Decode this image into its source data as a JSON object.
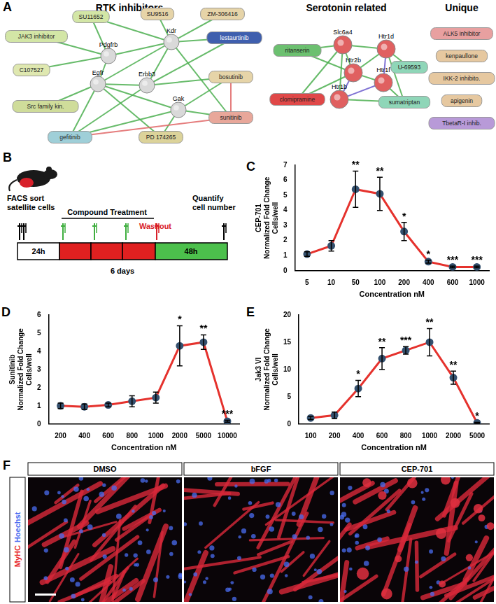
{
  "panel_labels": [
    "A",
    "B",
    "C",
    "D",
    "E",
    "F"
  ],
  "network": {
    "groups": [
      {
        "title": "RTK inhibitors",
        "nodes": [
          {
            "label": "SU11652",
            "kind": "drug",
            "color": "#d3e6a6"
          },
          {
            "label": "SU9516",
            "kind": "drug",
            "color": "#e6d4a8"
          },
          {
            "label": "ZM-306416",
            "kind": "drug",
            "color": "#e6d4a8"
          },
          {
            "label": "JAK3 inhibitor",
            "kind": "drug",
            "color": "#d3e6a6"
          },
          {
            "label": "lestaurtinib",
            "kind": "drug",
            "color": "#3f5fae"
          },
          {
            "label": "Pdgfrb",
            "kind": "protein",
            "color": "#d9d9d9"
          },
          {
            "label": "Kdr",
            "kind": "protein",
            "color": "#d9d9d9"
          },
          {
            "label": "C107527",
            "kind": "drug",
            "color": "#dfe8b0"
          },
          {
            "label": "Egfr",
            "kind": "protein",
            "color": "#d9d9d9"
          },
          {
            "label": "Erbb3",
            "kind": "protein",
            "color": "#d9d9d9"
          },
          {
            "label": "bosutinib",
            "kind": "drug",
            "color": "#e6d4a8"
          },
          {
            "label": "Gak",
            "kind": "protein",
            "color": "#d9d9d9"
          },
          {
            "label": "Src family kin.",
            "kind": "drug",
            "color": "#cfdc9a"
          },
          {
            "label": "sunitinib",
            "kind": "drug",
            "color": "#e8a79a"
          },
          {
            "label": "gefitinib",
            "kind": "drug",
            "color": "#9fcfd8"
          },
          {
            "label": "PD 174265",
            "kind": "drug",
            "color": "#dcd39a"
          }
        ],
        "edges": [
          {
            "from": "Pdgfrb",
            "to": "Kdr",
            "color": "#4caf50"
          },
          {
            "from": "Pdgfrb",
            "to": "Egfr",
            "color": "#4caf50"
          },
          {
            "from": "Pdgfrb",
            "to": "SU11652",
            "color": "#4caf50"
          },
          {
            "from": "Pdgfrb",
            "to": "JAK3 inhibitor",
            "color": "#4caf50"
          },
          {
            "from": "Pdgfrb",
            "to": "C107527",
            "color": "#4caf50"
          },
          {
            "from": "Kdr",
            "to": "SU11652",
            "color": "#4caf50"
          },
          {
            "from": "Kdr",
            "to": "SU9516",
            "color": "#4caf50"
          },
          {
            "from": "Kdr",
            "to": "ZM-306416",
            "color": "#4caf50"
          },
          {
            "from": "Kdr",
            "to": "lestaurtinib",
            "color": "#4caf50"
          },
          {
            "from": "Kdr",
            "to": "sunitinib",
            "color": "#4caf50"
          },
          {
            "from": "Kdr",
            "to": "Egfr",
            "color": "#4caf50"
          },
          {
            "from": "Kdr",
            "to": "Erbb3",
            "color": "#4caf50"
          },
          {
            "from": "Egfr",
            "to": "Erbb3",
            "color": "#4caf50"
          },
          {
            "from": "Egfr",
            "to": "Src family kin.",
            "color": "#4caf50"
          },
          {
            "from": "Egfr",
            "to": "gefitinib",
            "color": "#4caf50"
          },
          {
            "from": "Egfr",
            "to": "PD 174265",
            "color": "#4caf50"
          },
          {
            "from": "Egfr",
            "to": "Gak",
            "color": "#4caf50"
          },
          {
            "from": "Erbb3",
            "to": "gefitinib",
            "color": "#4caf50"
          },
          {
            "from": "Erbb3",
            "to": "bosutinib",
            "color": "#4caf50"
          },
          {
            "from": "Erbb3",
            "to": "lestaurtinib",
            "color": "#4caf50"
          },
          {
            "from": "Gak",
            "to": "bosutinib",
            "color": "#4caf50"
          },
          {
            "from": "Gak",
            "to": "sunitinib",
            "color": "#4caf50"
          },
          {
            "from": "Gak",
            "to": "gefitinib",
            "color": "#4caf50"
          },
          {
            "from": "Gak",
            "to": "PD 174265",
            "color": "#4caf50"
          },
          {
            "from": "bosutinib",
            "to": "sunitinib",
            "color": "#e06666"
          },
          {
            "from": "gefitinib",
            "to": "sunitinib",
            "color": "#e06666"
          }
        ]
      },
      {
        "title": "Serotonin related",
        "nodes": [
          {
            "label": "ritanserin",
            "kind": "drug",
            "color": "#6cc070"
          },
          {
            "label": "Slc6a4",
            "kind": "protein",
            "color": "#e06060"
          },
          {
            "label": "Htr1d",
            "kind": "protein",
            "color": "#e06060"
          },
          {
            "label": "U-69593",
            "kind": "drug",
            "color": "#8fd6b8"
          },
          {
            "label": "Htr2b",
            "kind": "protein",
            "color": "#e06060"
          },
          {
            "label": "Htr1f",
            "kind": "protein",
            "color": "#e06060"
          },
          {
            "label": "clomipramine",
            "kind": "drug",
            "color": "#e04848"
          },
          {
            "label": "Htr1b",
            "kind": "protein",
            "color": "#e06060"
          },
          {
            "label": "sumatriptan",
            "kind": "drug",
            "color": "#8fd6b8"
          }
        ],
        "edges": [
          {
            "from": "ritanserin",
            "to": "Slc6a4",
            "color": "#4caf50"
          },
          {
            "from": "ritanserin",
            "to": "Htr2b",
            "color": "#4caf50"
          },
          {
            "from": "clomipramine",
            "to": "Slc6a4",
            "color": "#4caf50"
          },
          {
            "from": "clomipramine",
            "to": "Htr2b",
            "color": "#4caf50"
          },
          {
            "from": "Slc6a4",
            "to": "Htr1d",
            "color": "#4caf50"
          },
          {
            "from": "Slc6a4",
            "to": "Htr2b",
            "color": "#4caf50"
          },
          {
            "from": "Slc6a4",
            "to": "Htr1b",
            "color": "#4caf50"
          },
          {
            "from": "Htr1d",
            "to": "Htr1f",
            "color": "#6a5acd"
          },
          {
            "from": "Htr1d",
            "to": "Htr2b",
            "color": "#4caf50"
          },
          {
            "from": "Htr1d",
            "to": "sumatriptan",
            "color": "#4caf50"
          },
          {
            "from": "Htr1d",
            "to": "U-69593",
            "color": "#4caf50"
          },
          {
            "from": "Htr1f",
            "to": "sumatriptan",
            "color": "#4caf50"
          },
          {
            "from": "Htr1b",
            "to": "sumatriptan",
            "color": "#4caf50"
          },
          {
            "from": "Htr1b",
            "to": "Htr2b",
            "color": "#6a5acd"
          },
          {
            "from": "Htr1b",
            "to": "Htr1f",
            "color": "#6a5acd"
          },
          {
            "from": "Htr2b",
            "to": "Htr1f",
            "color": "#4caf50"
          }
        ]
      },
      {
        "title": "Unique",
        "nodes": [
          {
            "label": "ALK5 inhibitor",
            "kind": "drug",
            "color": "#e8a0a0"
          },
          {
            "label": "kenpaullone",
            "kind": "drug",
            "color": "#e6c8a0"
          },
          {
            "label": "IKK-2 inhibito.",
            "kind": "drug",
            "color": "#e6c8a0"
          },
          {
            "label": "apigenin",
            "kind": "drug",
            "color": "#e6c8a0"
          },
          {
            "label": "TbetaR-I inhib.",
            "kind": "drug",
            "color": "#b89ad8"
          }
        ],
        "edges": []
      }
    ]
  },
  "schematic": {
    "start_text": [
      "FACS sort",
      "satellite cells"
    ],
    "treatment": "Compound Treatment",
    "washout": "Washout",
    "end_text": [
      "Quantify",
      "cell number"
    ],
    "first_period": "24h",
    "last_period": "48h",
    "total": "6 days"
  },
  "chart_data": [
    {
      "type": "line",
      "series": [
        {
          "name": "CEP-701",
          "color": "#e5322d",
          "marker": "circle",
          "values": [
            1.1,
            1.65,
            5.4,
            5.1,
            2.6,
            0.6,
            0.25,
            0.25
          ],
          "errors": [
            0.15,
            0.35,
            1.2,
            1.1,
            0.6,
            0.1,
            0.05,
            0.05
          ],
          "significance": [
            null,
            null,
            "**",
            "**",
            "*",
            "*",
            "***",
            "***"
          ]
        }
      ],
      "categories": [
        "5",
        "10",
        "50",
        "100",
        "200",
        "400",
        "600",
        "1000"
      ],
      "x_label": "Concentration nM",
      "y_label": [
        "Normalized Fold Change",
        "Cells/well"
      ],
      "ylim": [
        0,
        7
      ],
      "yticks": [
        0,
        1,
        2,
        3,
        4,
        5,
        6,
        7
      ],
      "grid": false
    },
    {
      "type": "line",
      "series": [
        {
          "name": "Sunitinib",
          "color": "#e5322d",
          "marker": "circle",
          "values": [
            1.0,
            0.95,
            1.05,
            1.25,
            1.45,
            4.3,
            4.5,
            0.15
          ],
          "errors": [
            0.15,
            0.15,
            0.1,
            0.3,
            0.3,
            1.1,
            0.4,
            0.05
          ],
          "significance": [
            null,
            null,
            null,
            null,
            null,
            "*",
            "**",
            "***"
          ]
        }
      ],
      "categories": [
        "200",
        "400",
        "600",
        "800",
        "1000",
        "2000",
        "5000",
        "10000"
      ],
      "x_label": "Concentration nM",
      "y_label": [
        "Normalized Fold Change",
        "Cells/well"
      ],
      "ylim": [
        0,
        6
      ],
      "yticks": [
        0,
        1,
        2,
        3,
        4,
        5,
        6
      ],
      "grid": false
    },
    {
      "type": "line",
      "series": [
        {
          "name": "Jak3 VI",
          "color": "#e5322d",
          "marker": "circle",
          "values": [
            1.1,
            1.6,
            6.5,
            12,
            13.5,
            15,
            8.5,
            0.2
          ],
          "errors": [
            0.3,
            0.6,
            1.5,
            2,
            0.7,
            2.5,
            1.2,
            0.1
          ],
          "significance": [
            null,
            null,
            "*",
            "**",
            "***",
            "**",
            "**",
            "*"
          ]
        }
      ],
      "categories": [
        "100",
        "200",
        "400",
        "600",
        "800",
        "1000",
        "2000",
        "5000"
      ],
      "x_label": "Concentration nM",
      "y_label": [
        "Normalized Fold Change",
        "Cells/well"
      ],
      "ylim": [
        0,
        20
      ],
      "yticks": [
        0,
        5,
        10,
        15,
        20
      ],
      "grid": false
    }
  ],
  "images": {
    "stain": [
      "MyHC",
      "Hoechst"
    ],
    "stain_colors": [
      "#e8282b",
      "#4a6cf0"
    ],
    "conditions": [
      "DMSO",
      "bFGF",
      "CEP-701"
    ]
  }
}
